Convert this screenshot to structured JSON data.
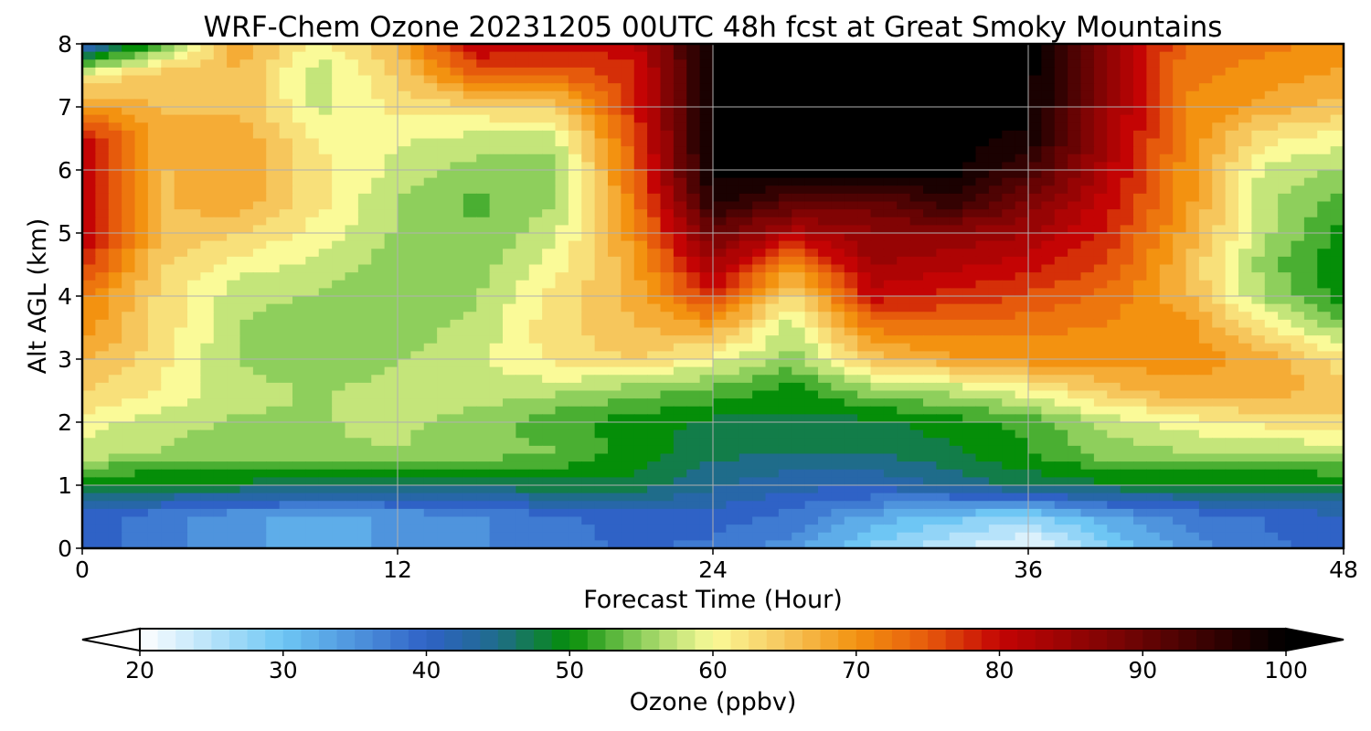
{
  "chart_data": {
    "type": "heatmap",
    "title": "WRF-Chem Ozone  20231205 00UTC 48h fcst at Great Smoky Mountains",
    "xlabel": "Forecast Time (Hour)",
    "ylabel": "Alt AGL (km)",
    "xlim": [
      0,
      48
    ],
    "ylim": [
      0,
      8
    ],
    "xticks": [
      0,
      12,
      24,
      36,
      48
    ],
    "yticks": [
      0,
      1,
      2,
      3,
      4,
      5,
      6,
      7,
      8
    ],
    "grid": true,
    "x": [
      0,
      3,
      6,
      9,
      12,
      15,
      18,
      21,
      24,
      27,
      30,
      33,
      36,
      39,
      42,
      45,
      48
    ],
    "y": [
      0,
      0.5,
      1,
      1.5,
      2,
      2.5,
      3,
      3.5,
      4,
      4.5,
      5,
      5.5,
      6,
      6.5,
      7,
      7.5,
      8
    ],
    "z": [
      [
        40,
        37,
        34,
        33,
        34,
        36,
        38,
        39,
        38,
        35,
        28,
        24,
        20,
        28,
        35,
        38,
        40
      ],
      [
        40,
        37,
        34,
        33,
        34,
        36,
        38,
        40,
        40,
        38,
        33,
        30,
        28,
        33,
        37,
        39,
        41
      ],
      [
        48,
        48,
        48,
        47,
        47,
        47,
        48,
        48,
        44,
        42,
        42,
        44,
        47,
        48,
        48,
        48,
        48
      ],
      [
        58,
        56,
        55,
        56,
        56,
        55,
        54,
        50,
        47,
        46,
        46,
        48,
        51,
        55,
        56,
        56,
        57
      ],
      [
        60,
        57,
        56,
        56,
        57,
        55,
        52,
        50,
        48,
        48,
        48,
        50,
        52,
        57,
        60,
        62,
        63
      ],
      [
        64,
        61,
        57,
        56,
        57,
        58,
        57,
        55,
        53,
        50,
        55,
        57,
        60,
        65,
        68,
        68,
        65
      ],
      [
        67,
        62,
        56,
        55,
        56,
        58,
        62,
        64,
        60,
        55,
        65,
        68,
        70,
        70,
        70,
        68,
        62
      ],
      [
        70,
        63,
        56,
        55,
        55,
        57,
        63,
        66,
        68,
        57,
        72,
        73,
        72,
        71,
        70,
        62,
        55
      ],
      [
        72,
        63,
        57,
        56,
        54,
        56,
        62,
        67,
        78,
        62,
        80,
        78,
        76,
        73,
        67,
        56,
        50
      ],
      [
        78,
        64,
        60,
        58,
        55,
        55,
        60,
        68,
        84,
        70,
        84,
        82,
        80,
        76,
        66,
        55,
        49
      ],
      [
        82,
        66,
        64,
        60,
        56,
        54,
        58,
        70,
        90,
        82,
        86,
        86,
        84,
        78,
        68,
        57,
        50
      ],
      [
        82,
        66,
        68,
        62,
        56,
        53,
        56,
        72,
        97,
        92,
        90,
        96,
        88,
        80,
        70,
        57,
        53
      ],
      [
        82,
        66,
        68,
        62,
        58,
        55,
        55,
        74,
        100,
        100,
        100,
        100,
        94,
        82,
        70,
        58,
        56
      ],
      [
        80,
        67,
        68,
        61,
        59,
        58,
        58,
        76,
        100,
        100,
        100,
        100,
        98,
        84,
        71,
        62,
        60
      ],
      [
        70,
        66,
        66,
        58,
        62,
        63,
        64,
        78,
        100,
        100,
        100,
        100,
        100,
        85,
        71,
        68,
        65
      ],
      [
        60,
        66,
        66,
        57,
        64,
        74,
        74,
        78,
        100,
        100,
        100,
        100,
        100,
        85,
        72,
        70,
        68
      ],
      [
        40,
        52,
        68,
        60,
        67,
        82,
        80,
        80,
        100,
        100,
        100,
        100,
        100,
        87,
        73,
        72,
        70
      ]
    ],
    "colorbar": {
      "label": "Ozone  (ppbv)",
      "min": 20,
      "max": 100,
      "ticks": [
        20,
        30,
        40,
        50,
        60,
        70,
        80,
        90,
        100
      ],
      "extend": "both",
      "stops": [
        {
          "v": 20,
          "color": "#ffffff"
        },
        {
          "v": 30,
          "color": "#6ec6f4"
        },
        {
          "v": 40,
          "color": "#2f62c6"
        },
        {
          "v": 45,
          "color": "#1f6c8a"
        },
        {
          "v": 50,
          "color": "#058e08"
        },
        {
          "v": 55,
          "color": "#8ecf5c"
        },
        {
          "v": 60,
          "color": "#fafa98"
        },
        {
          "v": 65,
          "color": "#f6c65c"
        },
        {
          "v": 70,
          "color": "#f39210"
        },
        {
          "v": 75,
          "color": "#e65a0c"
        },
        {
          "v": 80,
          "color": "#c40404"
        },
        {
          "v": 88,
          "color": "#7c0404"
        },
        {
          "v": 100,
          "color": "#000000"
        }
      ]
    }
  }
}
